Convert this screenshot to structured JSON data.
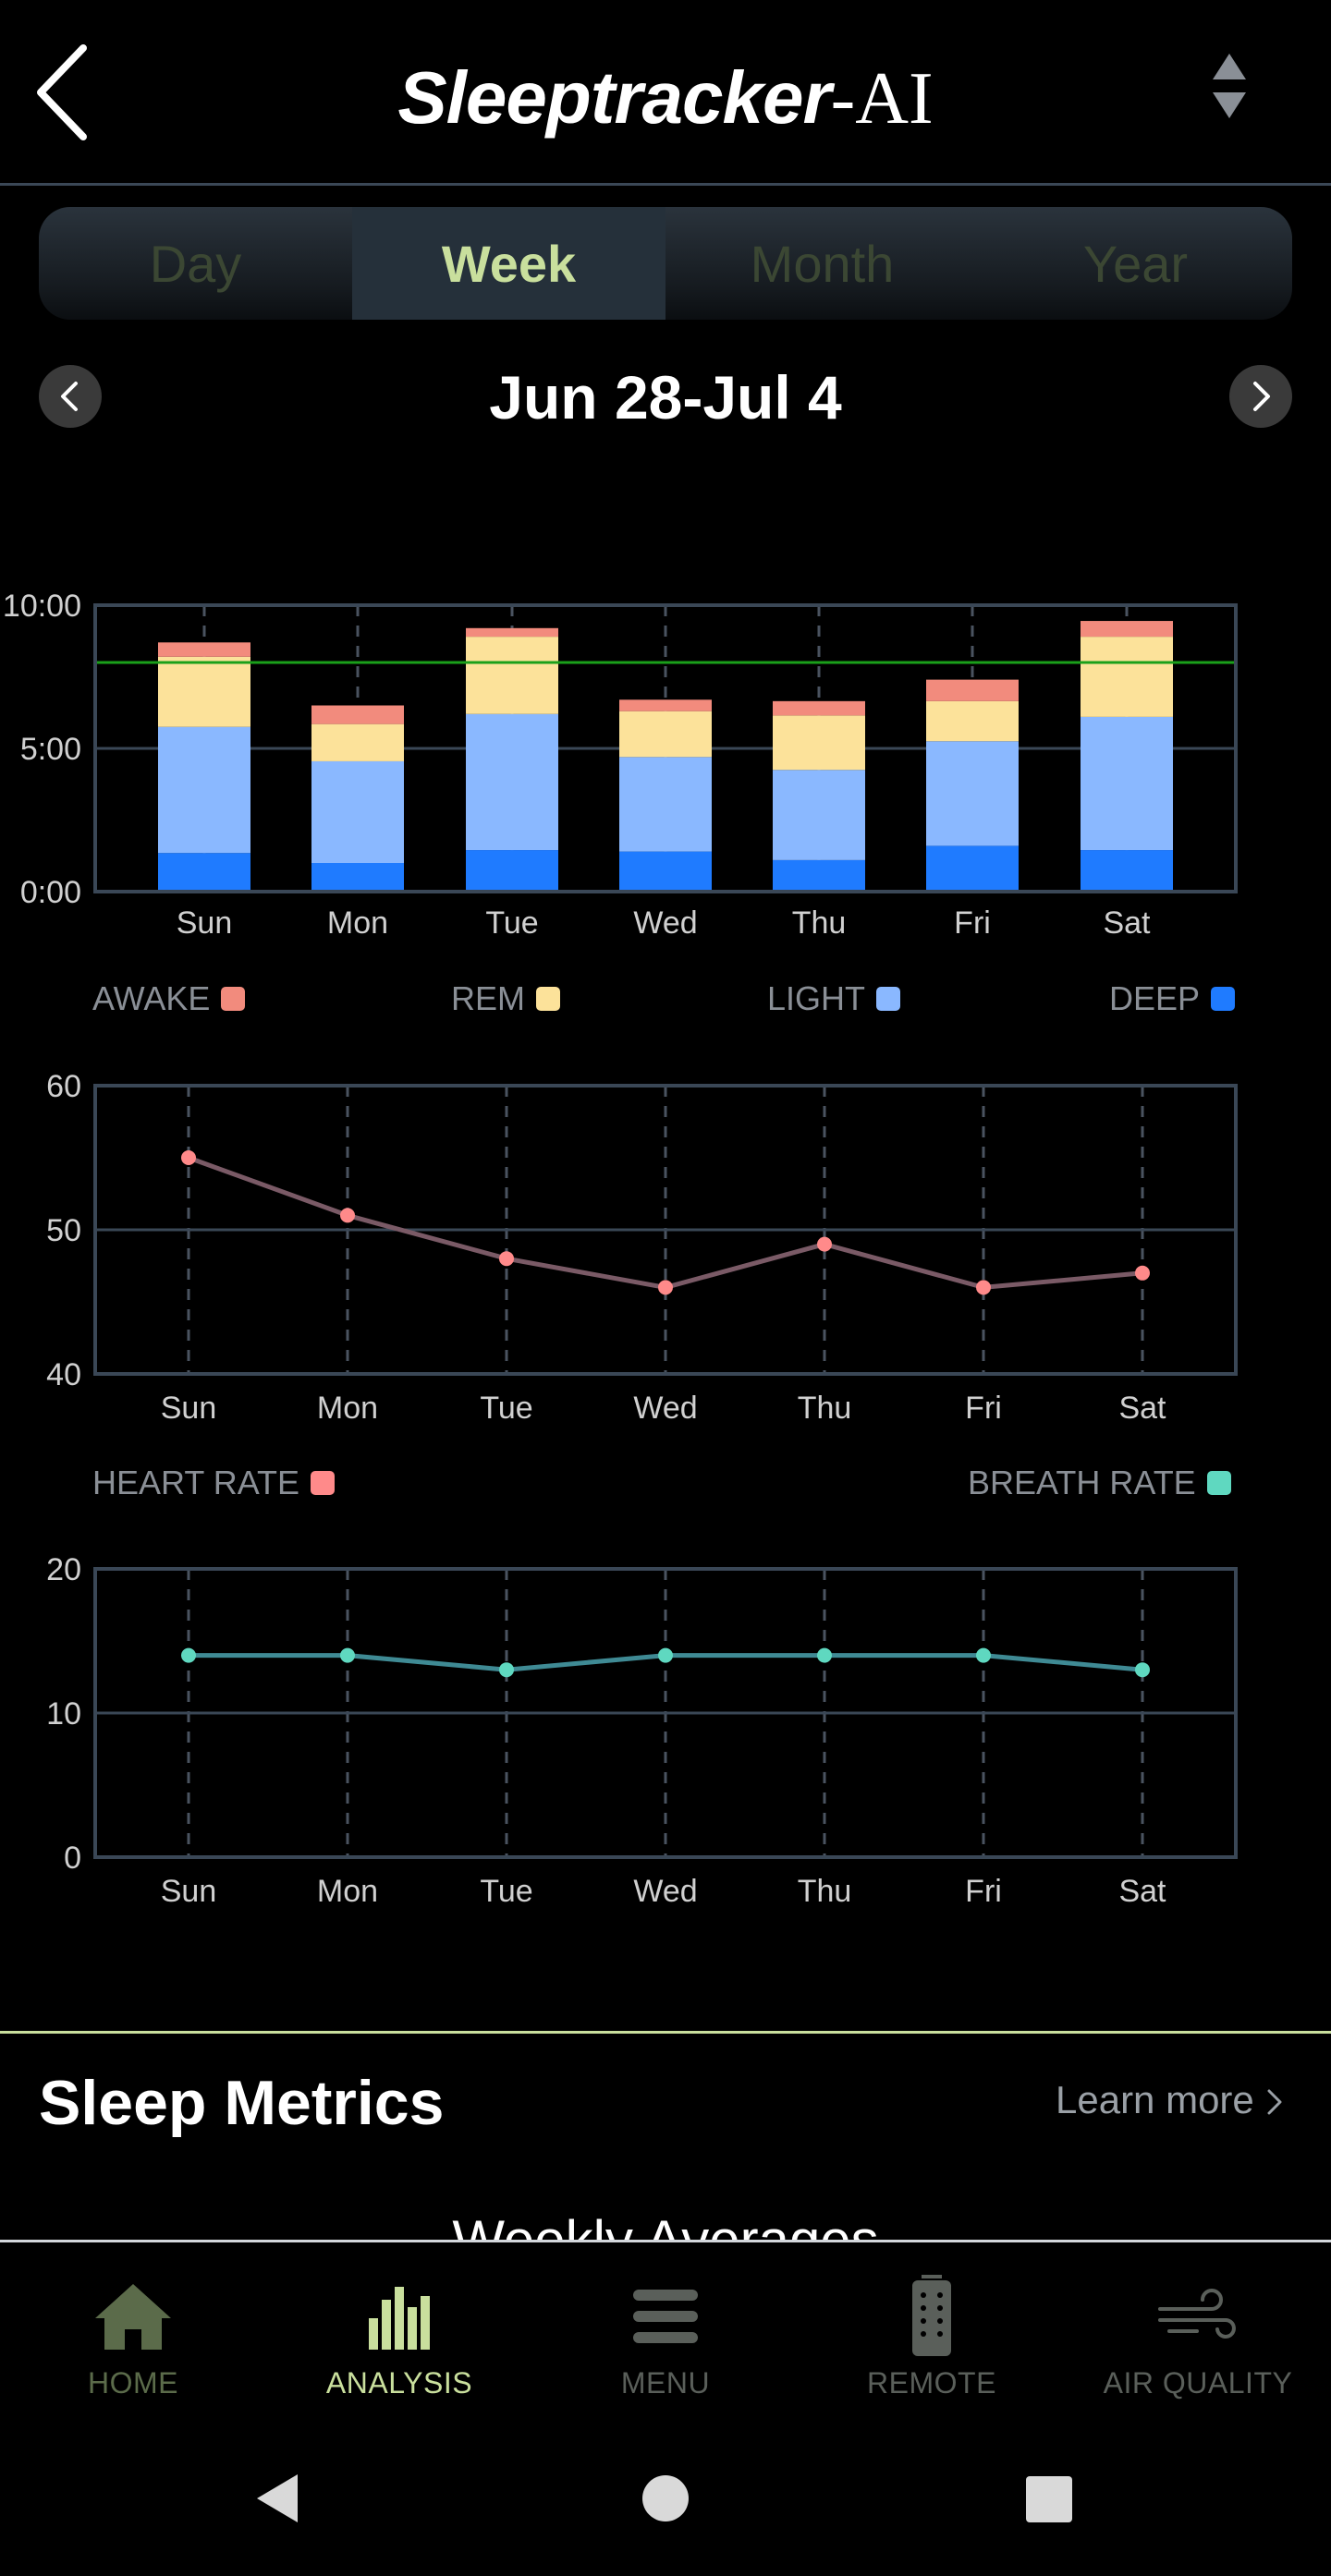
{
  "header": {
    "logo_main": "Sleeptracker",
    "logo_suffix": "-AI"
  },
  "tabs": [
    {
      "label": "Day",
      "active": false
    },
    {
      "label": "Week",
      "active": true
    },
    {
      "label": "Month",
      "active": false
    },
    {
      "label": "Year",
      "active": false
    }
  ],
  "date_nav": {
    "range": "Jun 28-Jul 4"
  },
  "colors": {
    "awake": "#f28b7d",
    "rem": "#fce29a",
    "light": "#8ab8ff",
    "deep": "#1f7bff",
    "heart": "#ff8a8a",
    "breath": "#5fd8c0",
    "accent": "#c9df9d",
    "goal_line": "#1aa01a"
  },
  "sleep_legend": {
    "awake": "AWAKE",
    "rem": "REM",
    "light": "LIGHT",
    "deep": "DEEP"
  },
  "vitals_legend": {
    "heart": "HEART RATE",
    "breath": "BREATH RATE"
  },
  "chart_data": [
    {
      "type": "bar",
      "stacked": true,
      "categories": [
        "Sun",
        "Mon",
        "Tue",
        "Wed",
        "Thu",
        "Fri",
        "Sat"
      ],
      "y_ticks": [
        "0:00",
        "5:00",
        "10:00"
      ],
      "ylim": [
        0,
        10
      ],
      "goal_line": 8.0,
      "series": [
        {
          "name": "DEEP",
          "color": "#1f7bff",
          "values": [
            1.35,
            1.0,
            1.45,
            1.4,
            1.1,
            1.6,
            1.45
          ]
        },
        {
          "name": "LIGHT",
          "color": "#8ab8ff",
          "values": [
            4.4,
            3.55,
            4.75,
            3.3,
            3.15,
            3.65,
            4.65
          ]
        },
        {
          "name": "REM",
          "color": "#fce29a",
          "values": [
            2.45,
            1.3,
            2.7,
            1.6,
            1.9,
            1.4,
            2.8
          ]
        },
        {
          "name": "AWAKE",
          "color": "#f28b7d",
          "values": [
            0.5,
            0.65,
            0.3,
            0.4,
            0.5,
            0.75,
            0.55
          ]
        }
      ],
      "grid": true
    },
    {
      "type": "line",
      "categories": [
        "Sun",
        "Mon",
        "Tue",
        "Wed",
        "Thu",
        "Fri",
        "Sat"
      ],
      "y_ticks": [
        "40",
        "50",
        "60"
      ],
      "ylim": [
        40,
        60
      ],
      "series": [
        {
          "name": "HEART RATE",
          "color": "#ff8a8a",
          "values": [
            55,
            51,
            48,
            46,
            49,
            46,
            47
          ]
        }
      ]
    },
    {
      "type": "line",
      "categories": [
        "Sun",
        "Mon",
        "Tue",
        "Wed",
        "Thu",
        "Fri",
        "Sat"
      ],
      "y_ticks": [
        "0",
        "10",
        "20"
      ],
      "ylim": [
        0,
        20
      ],
      "series": [
        {
          "name": "BREATH RATE",
          "color": "#5fd8c0",
          "values": [
            14,
            14,
            13,
            14,
            14,
            14,
            13
          ]
        }
      ]
    }
  ],
  "section": {
    "title": "Sleep Metrics",
    "learn_more": "Learn more",
    "subheading": "Weekly Averages"
  },
  "bottom_nav": [
    {
      "label": "HOME",
      "icon": "home-icon",
      "active": false
    },
    {
      "label": "ANALYSIS",
      "icon": "bar-chart-icon",
      "active": true
    },
    {
      "label": "MENU",
      "icon": "menu-icon",
      "active": false
    },
    {
      "label": "REMOTE",
      "icon": "remote-icon",
      "active": false
    },
    {
      "label": "AIR QUALITY",
      "icon": "wind-icon",
      "active": false
    }
  ],
  "system_nav": {
    "back": "back-triangle-icon",
    "home": "home-circle-icon",
    "recents": "recents-square-icon"
  }
}
